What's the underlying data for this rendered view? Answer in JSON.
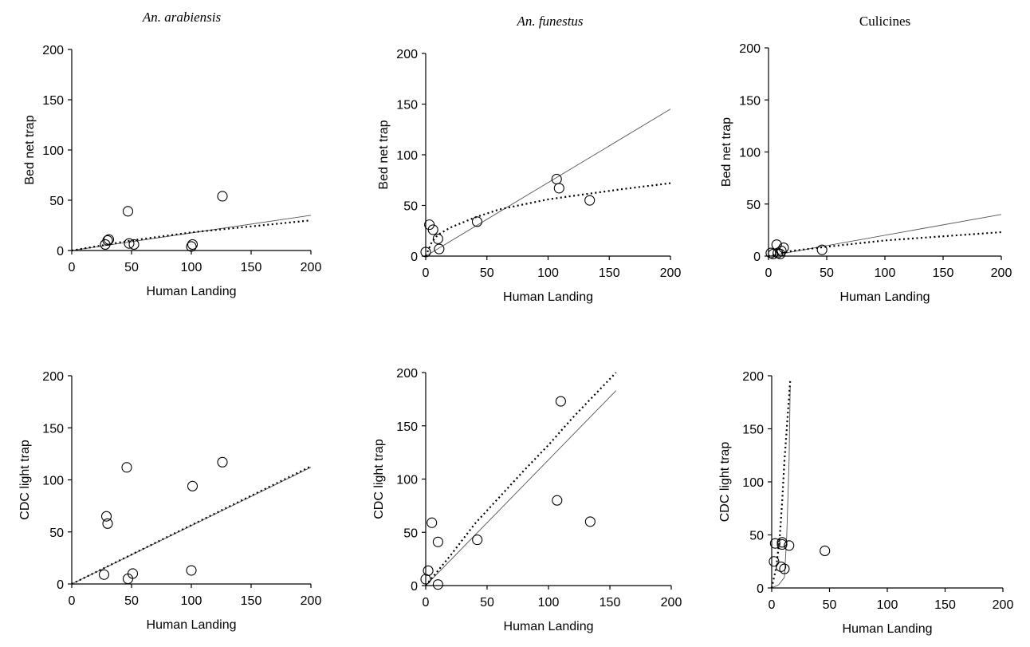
{
  "column_titles": [
    "An. arabiensis",
    "An. funestus",
    "Culicines"
  ],
  "chart_data": [
    {
      "id": "arabiensis-bednet",
      "type": "scatter",
      "column": "An. arabiensis",
      "xlabel": "Human Landing",
      "ylabel": "Bed net trap",
      "xlim": [
        0,
        200
      ],
      "ylim": [
        0,
        200
      ],
      "xticks": [
        0,
        50,
        100,
        150,
        200
      ],
      "yticks": [
        0,
        50,
        100,
        150,
        200
      ],
      "points": [
        [
          28,
          6
        ],
        [
          30,
          10
        ],
        [
          31,
          11
        ],
        [
          47,
          39
        ],
        [
          48,
          7
        ],
        [
          52,
          6
        ],
        [
          100,
          4
        ],
        [
          101,
          6
        ],
        [
          126,
          54
        ]
      ],
      "fit_solid": [
        [
          0,
          0
        ],
        [
          200,
          35
        ]
      ],
      "fit_dotted": [
        [
          0,
          0
        ],
        [
          50,
          10
        ],
        [
          100,
          18
        ],
        [
          150,
          24
        ],
        [
          200,
          30
        ]
      ]
    },
    {
      "id": "funestus-bednet",
      "type": "scatter",
      "column": "An. funestus",
      "xlabel": "Human Landing",
      "ylabel": "Bed net trap",
      "xlim": [
        0,
        200
      ],
      "ylim": [
        0,
        200
      ],
      "xticks": [
        0,
        50,
        100,
        150,
        200
      ],
      "yticks": [
        0,
        50,
        100,
        150,
        200
      ],
      "points": [
        [
          0,
          4
        ],
        [
          3,
          31
        ],
        [
          6,
          26
        ],
        [
          10,
          17
        ],
        [
          11,
          7
        ],
        [
          42,
          34
        ],
        [
          107,
          76
        ],
        [
          109,
          67
        ],
        [
          134,
          55
        ]
      ],
      "fit_solid": [
        [
          0,
          0
        ],
        [
          200,
          145
        ]
      ],
      "fit_dotted": [
        [
          0,
          0
        ],
        [
          5,
          14
        ],
        [
          10,
          21
        ],
        [
          20,
          28
        ],
        [
          40,
          38
        ],
        [
          60,
          46
        ],
        [
          80,
          51
        ],
        [
          100,
          56
        ],
        [
          130,
          61
        ],
        [
          160,
          66
        ],
        [
          200,
          72
        ]
      ]
    },
    {
      "id": "culicines-bednet",
      "type": "scatter",
      "column": "Culicines",
      "xlabel": "Human Landing",
      "ylabel": "Bed net trap",
      "xlim": [
        0,
        200
      ],
      "ylim": [
        0,
        200
      ],
      "xticks": [
        0,
        50,
        100,
        150,
        200
      ],
      "yticks": [
        0,
        50,
        100,
        150,
        200
      ],
      "points": [
        [
          2,
          3
        ],
        [
          4,
          2
        ],
        [
          7,
          11
        ],
        [
          8,
          3
        ],
        [
          10,
          2
        ],
        [
          11,
          5
        ],
        [
          13,
          8
        ],
        [
          46,
          6
        ]
      ],
      "fit_solid": [
        [
          0,
          0
        ],
        [
          200,
          40
        ]
      ],
      "fit_dotted": [
        [
          0,
          0
        ],
        [
          20,
          5
        ],
        [
          50,
          9
        ],
        [
          100,
          15
        ],
        [
          150,
          19
        ],
        [
          200,
          23
        ]
      ]
    },
    {
      "id": "arabiensis-cdc",
      "type": "scatter",
      "column": "An. arabiensis",
      "xlabel": "Human Landing",
      "ylabel": "CDC light trap",
      "xlim": [
        0,
        200
      ],
      "ylim": [
        0,
        200
      ],
      "xticks": [
        0,
        50,
        100,
        150,
        200
      ],
      "yticks": [
        0,
        50,
        100,
        150,
        200
      ],
      "points": [
        [
          27,
          9
        ],
        [
          29,
          65
        ],
        [
          30,
          58
        ],
        [
          46,
          112
        ],
        [
          47,
          5
        ],
        [
          51,
          10
        ],
        [
          100,
          13
        ],
        [
          101,
          94
        ],
        [
          126,
          117
        ]
      ],
      "fit_solid": [
        [
          0,
          0
        ],
        [
          200,
          112
        ]
      ],
      "fit_dotted": [
        [
          0,
          0
        ],
        [
          200,
          113
        ]
      ]
    },
    {
      "id": "funestus-cdc",
      "type": "scatter",
      "column": "An. funestus",
      "xlabel": "Human Landing",
      "ylabel": "CDC light trap",
      "xlim": [
        0,
        200
      ],
      "ylim": [
        0,
        200
      ],
      "xticks": [
        0,
        50,
        100,
        150,
        200
      ],
      "yticks": [
        0,
        50,
        100,
        150,
        200
      ],
      "points": [
        [
          0,
          6
        ],
        [
          2,
          14
        ],
        [
          5,
          59
        ],
        [
          10,
          1
        ],
        [
          10,
          41
        ],
        [
          42,
          43
        ],
        [
          107,
          80
        ],
        [
          110,
          173
        ],
        [
          134,
          60
        ]
      ],
      "fit_solid": [
        [
          0,
          0
        ],
        [
          155,
          183
        ]
      ],
      "fit_dotted": [
        [
          0,
          0
        ],
        [
          20,
          28
        ],
        [
          40,
          58
        ],
        [
          60,
          83
        ],
        [
          80,
          108
        ],
        [
          100,
          132
        ],
        [
          120,
          158
        ],
        [
          140,
          182
        ],
        [
          155,
          200
        ]
      ]
    },
    {
      "id": "culicines-cdc",
      "type": "scatter",
      "column": "Culicines",
      "xlabel": "Human Landing",
      "ylabel": "CDC light trap",
      "xlim": [
        0,
        200
      ],
      "ylim": [
        0,
        200
      ],
      "xticks": [
        0,
        50,
        100,
        150,
        200
      ],
      "yticks": [
        0,
        50,
        100,
        150,
        200
      ],
      "points": [
        [
          2,
          25
        ],
        [
          3,
          42
        ],
        [
          8,
          20
        ],
        [
          9,
          43
        ],
        [
          9,
          41
        ],
        [
          11,
          18
        ],
        [
          15,
          40
        ],
        [
          46,
          35
        ]
      ],
      "fit_solid": [
        [
          0,
          0
        ],
        [
          6,
          3
        ],
        [
          11,
          10
        ],
        [
          13,
          50
        ],
        [
          15,
          120
        ],
        [
          16,
          190
        ]
      ],
      "fit_dotted": [
        [
          0,
          0
        ],
        [
          4,
          20
        ],
        [
          7,
          48
        ],
        [
          9,
          80
        ],
        [
          11,
          120
        ],
        [
          14,
          165
        ],
        [
          16,
          195
        ]
      ]
    }
  ]
}
